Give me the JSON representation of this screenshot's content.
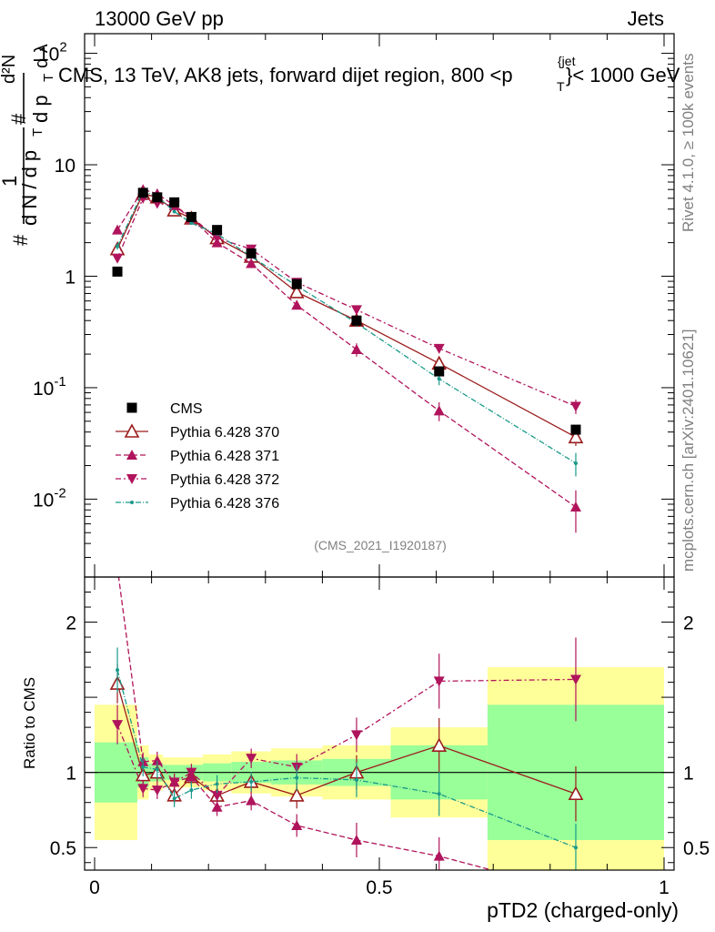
{
  "header": {
    "left": "13000 GeV pp",
    "right": "Jets",
    "title": "CMS, 13 TeV, AK8 jets, forward dijet region, 800 <p",
    "title_sup": "{jet",
    "title_sub": "T",
    "title_end": "}< 1000 GeV",
    "ylabel_num": "1",
    "ylabel_den": "d N / d p",
    "ylabel_den_sub": "T",
    "ylabel_d2n": "d²N",
    "ylabel_dpt": "d p",
    "ylabel_dlambda": "d λ",
    "hash": "#"
  },
  "side": {
    "rivet": "Rivet 4.1.0, ≥ 100k events",
    "mcplots": "mcplots.cern.ch [arXiv:2401.10621]"
  },
  "watermark": "(CMS_2021_I1920187)",
  "colors": {
    "cms": "#000000",
    "p370": "#9b1b1b",
    "p371": "#b0145c",
    "p372": "#b0145c",
    "p376": "#1a9a8a",
    "band_green": "#99ff99",
    "band_yellow": "#ffff99"
  },
  "chart_data": {
    "type": "line",
    "xlabel": "pTD2 (charged-only)",
    "ylabel_ratio": "Ratio to CMS",
    "xlim": [
      0,
      1
    ],
    "ylim_main": [
      0.002,
      150
    ],
    "ylim_ratio": [
      0.35,
      2.3
    ],
    "x_ticks": [
      "0",
      "0.5",
      "1"
    ],
    "y_ticks_main": [
      {
        "base": "10",
        "exp": "-2",
        "v": 0.01
      },
      {
        "base": "10",
        "exp": "-1",
        "v": 0.1
      },
      {
        "base": "1",
        "exp": "",
        "v": 1
      },
      {
        "base": "10",
        "exp": "",
        "v": 10
      },
      {
        "base": "10",
        "exp": "2",
        "v": 100
      }
    ],
    "y_ticks_ratio": [
      "0.5",
      "1",
      "2"
    ],
    "bins": [
      0.0,
      0.075,
      0.095,
      0.12,
      0.155,
      0.19,
      0.24,
      0.31,
      0.4,
      0.52,
      0.69,
      1.0
    ],
    "x": [
      0.04,
      0.085,
      0.11,
      0.14,
      0.17,
      0.215,
      0.275,
      0.355,
      0.46,
      0.605,
      0.845
    ],
    "cms": {
      "name": "CMS",
      "values": [
        1.1,
        5.6,
        5.1,
        4.6,
        3.4,
        2.6,
        1.6,
        0.85,
        0.4,
        0.14,
        0.042
      ]
    },
    "series": [
      {
        "name": "Pythia 6.428 370",
        "values": [
          1.75,
          5.5,
          5.1,
          3.9,
          3.3,
          2.2,
          1.5,
          0.72,
          0.4,
          0.165,
          0.036
        ],
        "err": [
          0.1,
          0.1,
          0.1,
          0.08,
          0.06,
          0.05,
          0.04,
          0.04,
          0.03,
          0.02,
          0.006
        ],
        "marker": "tri-up-open",
        "dash": ""
      },
      {
        "name": "Pythia 6.428 371",
        "values": [
          2.6,
          6.0,
          5.5,
          4.3,
          3.3,
          2.0,
          1.3,
          0.55,
          0.22,
          0.062,
          0.0085
        ],
        "err": [
          0.12,
          0.12,
          0.1,
          0.08,
          0.06,
          0.05,
          0.04,
          0.03,
          0.03,
          0.012,
          0.0035
        ],
        "marker": "tri-up-filled",
        "dash": "6,3"
      },
      {
        "name": "Pythia 6.428 372",
        "values": [
          1.45,
          5.0,
          4.5,
          4.3,
          3.4,
          2.2,
          1.75,
          0.88,
          0.5,
          0.225,
          0.068
        ],
        "err": [
          0.1,
          0.1,
          0.1,
          0.08,
          0.06,
          0.05,
          0.04,
          0.04,
          0.03,
          0.02,
          0.01
        ],
        "marker": "tri-down-filled",
        "dash": "6,3,2,3"
      },
      {
        "name": "Pythia 6.428 376",
        "values": [
          1.85,
          5.8,
          5.2,
          3.8,
          3.0,
          2.4,
          1.5,
          0.82,
          0.38,
          0.12,
          0.021
        ],
        "err": [
          0.12,
          0.12,
          0.1,
          0.08,
          0.06,
          0.05,
          0.04,
          0.04,
          0.03,
          0.015,
          0.005
        ],
        "marker": "dot",
        "dash": "6,2,1,2"
      }
    ],
    "ratio": {
      "green": [
        0.2,
        0.1,
        0.06,
        0.05,
        0.05,
        0.06,
        0.07,
        0.08,
        0.09,
        0.18,
        0.45
      ],
      "yellow": [
        0.45,
        0.18,
        0.12,
        0.1,
        0.1,
        0.12,
        0.14,
        0.16,
        0.18,
        0.3,
        0.7
      ]
    },
    "legend_position": "middle-left"
  }
}
